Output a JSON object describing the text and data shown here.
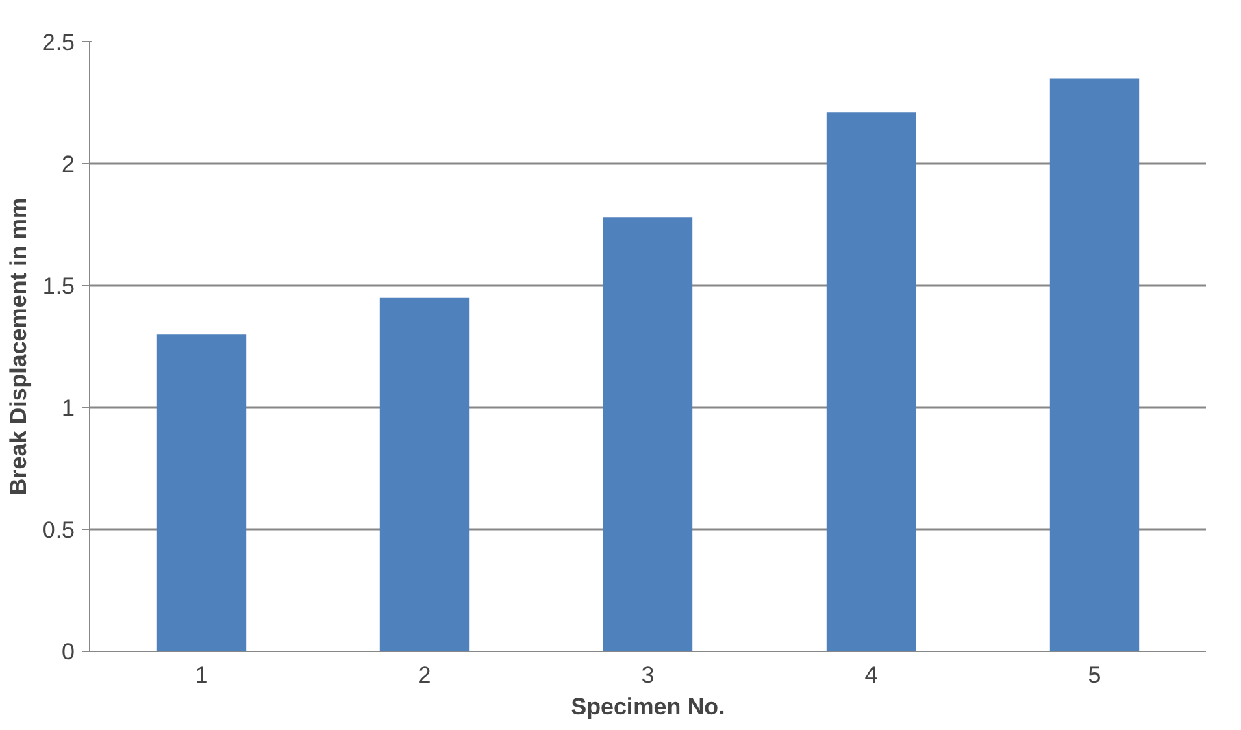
{
  "chart_data": {
    "type": "bar",
    "xlabel": "Specimen No.",
    "ylabel": "Break Displacement in mm",
    "categories": [
      "1",
      "2",
      "3",
      "4",
      "5"
    ],
    "values": [
      1.3,
      1.45,
      1.78,
      2.21,
      2.35
    ],
    "color": "#4f81bd",
    "ylim": [
      0,
      2.5
    ],
    "yticks": [
      0,
      0.5,
      1,
      1.5,
      2,
      2.5
    ],
    "grid": "y"
  }
}
